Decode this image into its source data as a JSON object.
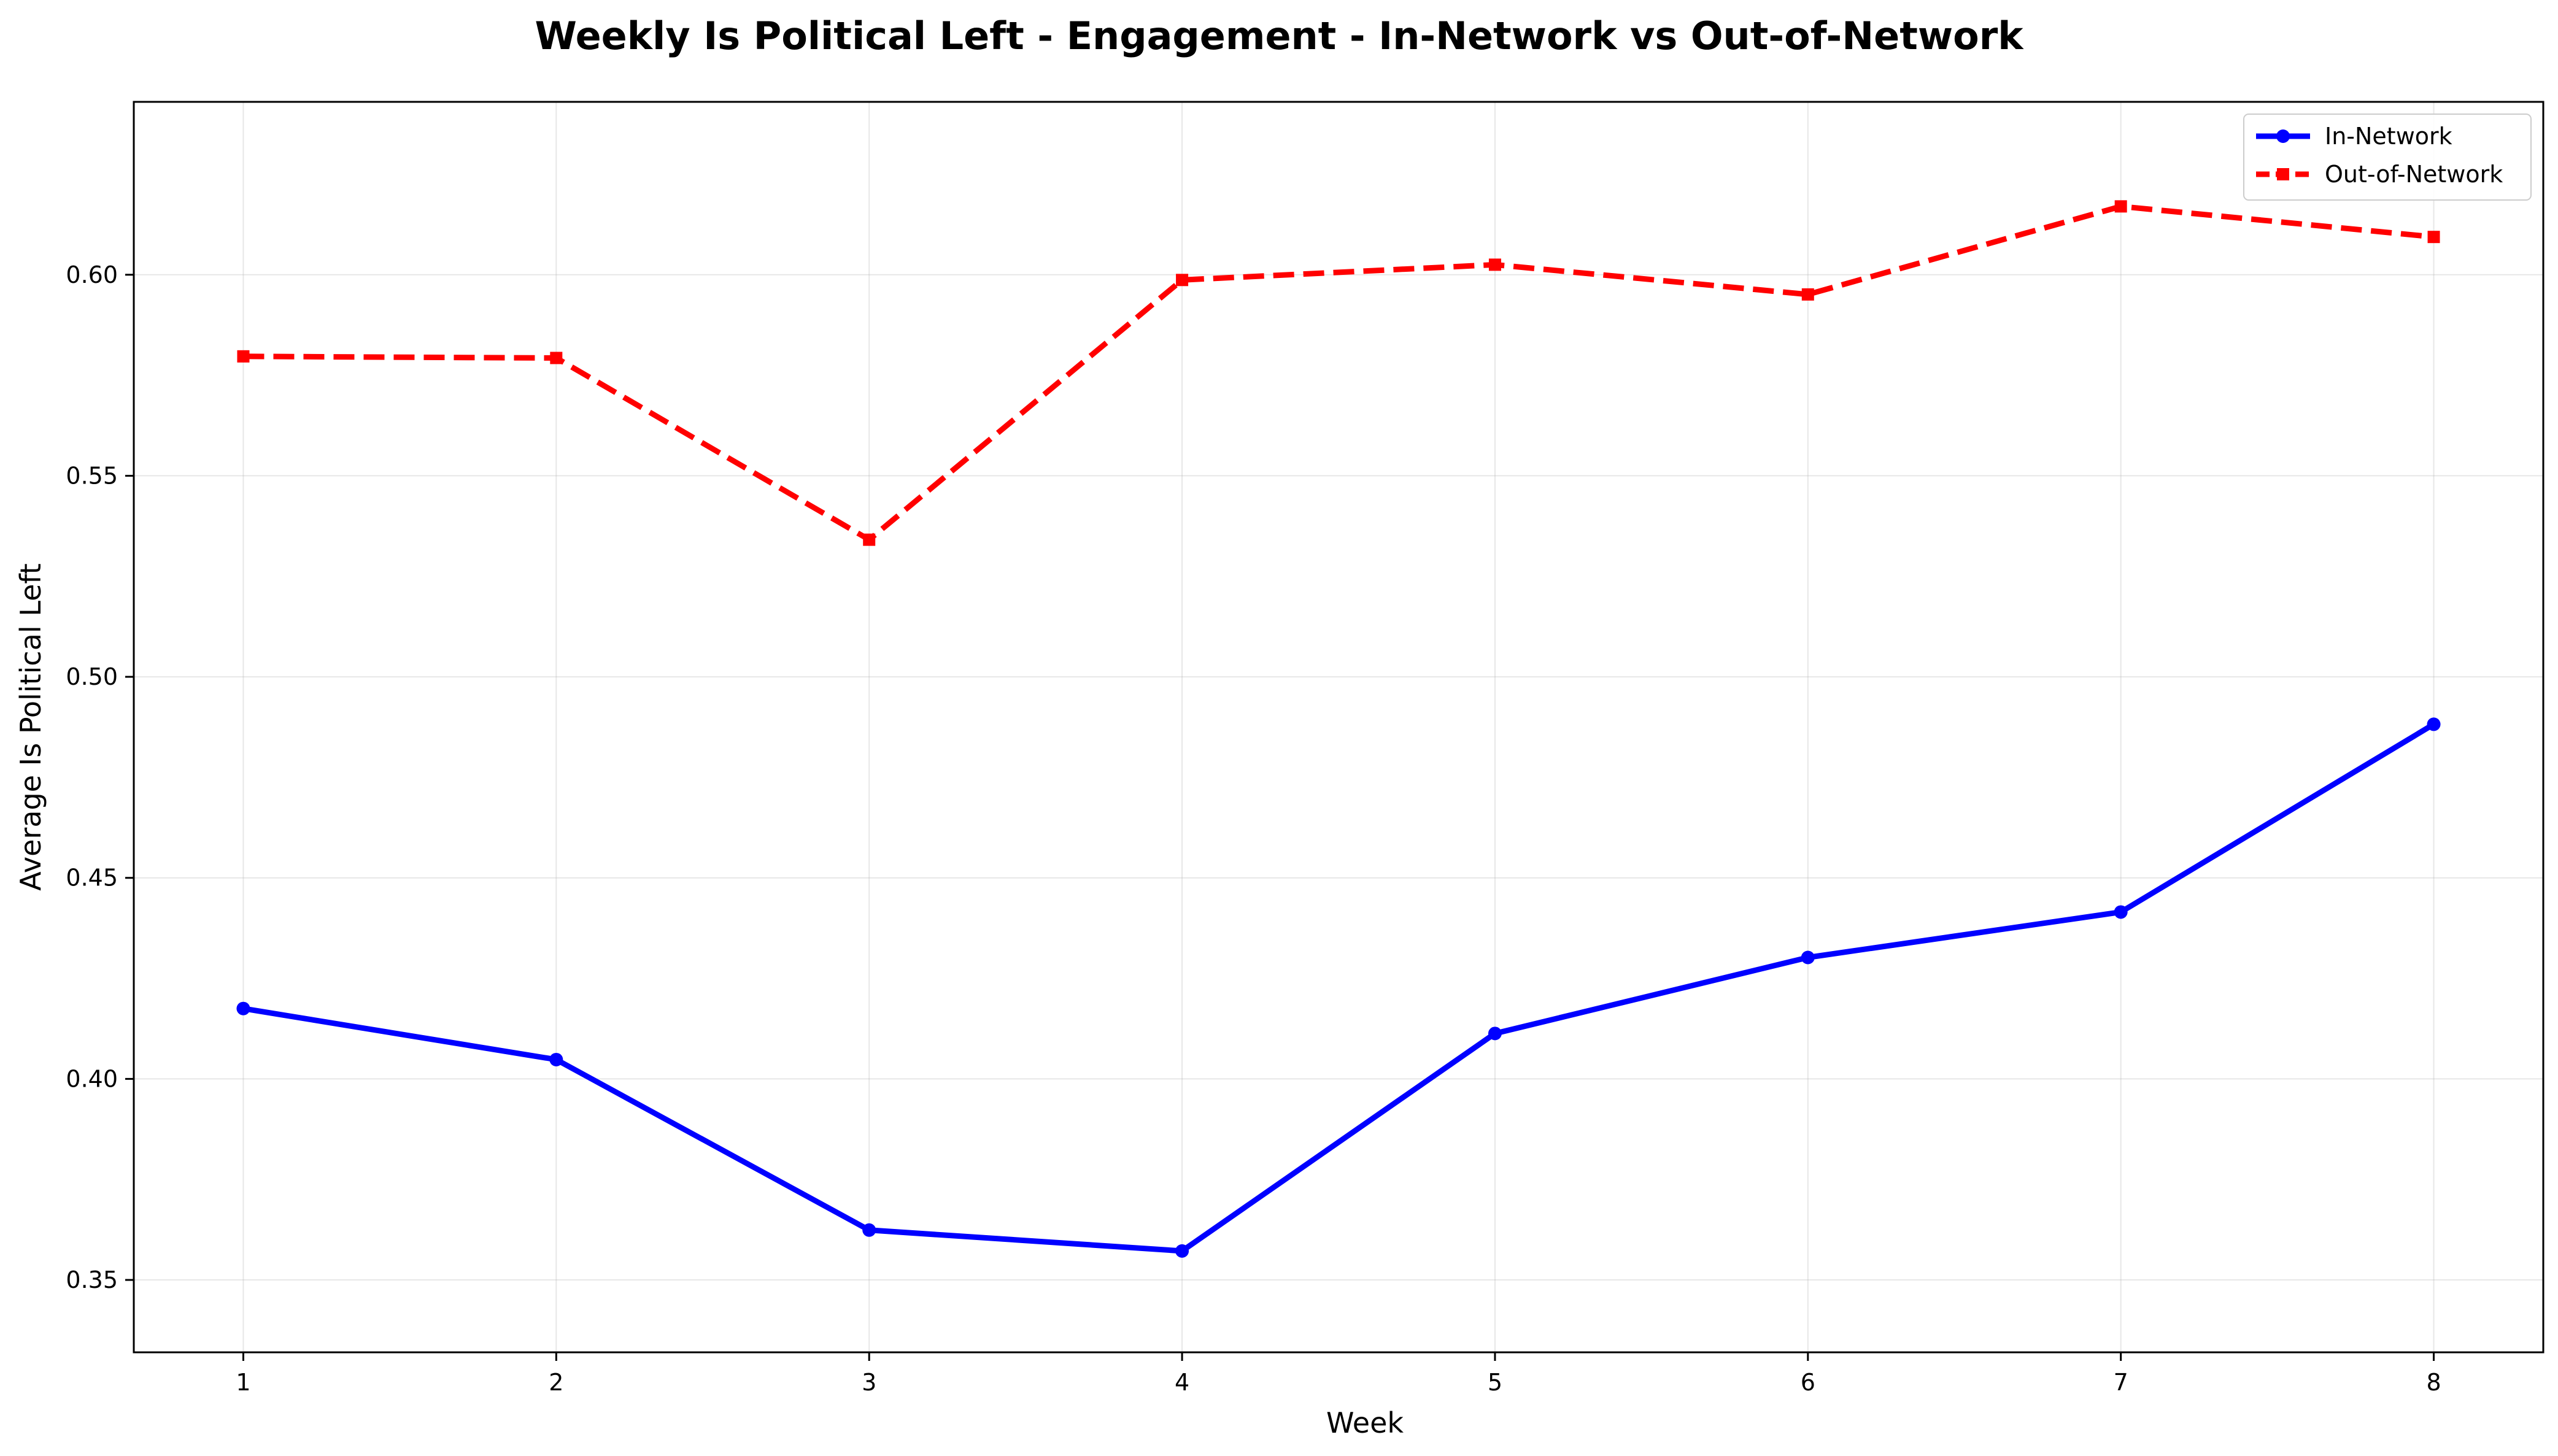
{
  "chart_data": {
    "type": "line",
    "title": "Weekly Is Political Left - Engagement - In-Network vs Out-of-Network",
    "xlabel": "Week",
    "ylabel": "Average Is Political Left",
    "x": [
      1,
      2,
      3,
      4,
      5,
      6,
      7,
      8
    ],
    "xlim": [
      0.65,
      8.35
    ],
    "ylim": [
      0.332,
      0.643
    ],
    "xticks": [
      "1",
      "2",
      "3",
      "4",
      "5",
      "6",
      "7",
      "8"
    ],
    "yticks": [
      0.35,
      0.4,
      0.45,
      0.5,
      0.55,
      0.6
    ],
    "ytick_labels": [
      "0.35",
      "0.40",
      "0.45",
      "0.50",
      "0.55",
      "0.60"
    ],
    "grid": true,
    "legend_position": "top-right",
    "series": [
      {
        "name": "In-Network",
        "color": "#0000ff",
        "style": "solid",
        "marker": "circle",
        "values": [
          0.4175,
          0.4048,
          0.3624,
          0.3572,
          0.4113,
          0.4302,
          0.4415,
          0.4882
        ]
      },
      {
        "name": "Out-of-Network",
        "color": "#ff0000",
        "style": "dashed",
        "marker": "square",
        "values": [
          0.5797,
          0.5793,
          0.5341,
          0.5987,
          0.6025,
          0.5951,
          0.617,
          0.6094
        ]
      }
    ]
  }
}
